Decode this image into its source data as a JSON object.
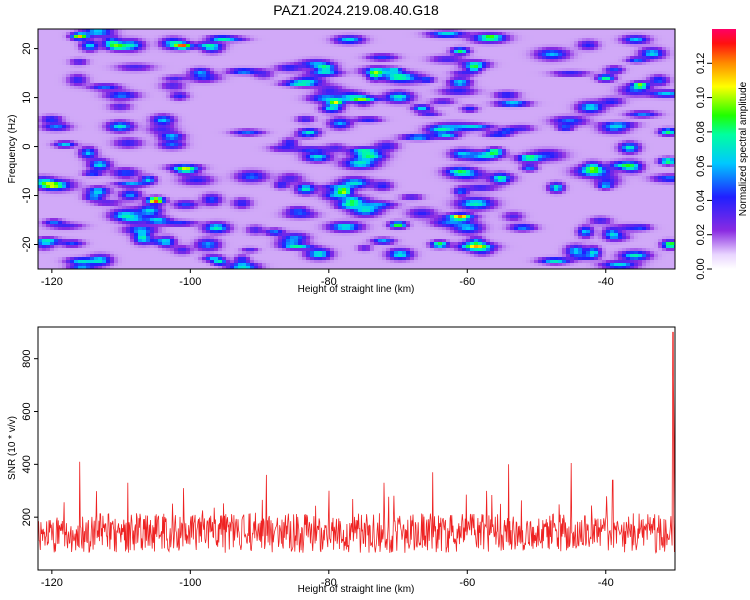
{
  "figure_title": "PAZ1.2024.219.08.40.G18",
  "chart_data": [
    {
      "type": "heatmap",
      "title": "",
      "xlabel": "Height of straight line (km)",
      "ylabel": "Frequency (Hz)",
      "xlim": [
        -122,
        -30
      ],
      "ylim": [
        -25,
        24
      ],
      "xticks": [
        -120,
        -100,
        -80,
        -60,
        -40
      ],
      "yticks": [
        -20,
        -10,
        0,
        10,
        20
      ],
      "colorbar": {
        "label": "Normalized spectral amplitude",
        "range": [
          0,
          0.14
        ],
        "ticks": [
          0,
          0.02,
          0.04,
          0.06,
          0.08,
          0.1,
          0.12
        ],
        "tick_labels": [
          "0.00",
          "0.02",
          "0.04",
          "0.06",
          "0.08",
          "0.10",
          "0.12"
        ],
        "colormap": "rainbow (white-violet-blue-cyan-green-yellow-red-magenta)"
      },
      "notable_peaks": [
        {
          "x": -105,
          "y": -11,
          "value": 0.14
        },
        {
          "x": -116,
          "y": 22.5,
          "value": 0.11
        },
        {
          "x": -101,
          "y": 20.5,
          "value": 0.11
        },
        {
          "x": -70,
          "y": -16,
          "value": 0.09
        },
        {
          "x": -64,
          "y": -20,
          "value": 0.09
        },
        {
          "x": -31,
          "y": 3,
          "value": 0.08
        },
        {
          "x": -31,
          "y": -3,
          "value": 0.09
        },
        {
          "x": -35,
          "y": 12.5,
          "value": 0.09
        },
        {
          "x": -79,
          "y": 9,
          "value": 0.09
        },
        {
          "x": -40,
          "y": 14,
          "value": 0.08
        },
        {
          "x": -61,
          "y": 19.5,
          "value": 0.08
        },
        {
          "x": -56,
          "y": -1,
          "value": 0.08
        }
      ]
    },
    {
      "type": "line",
      "title": "",
      "xlabel": "Height of straight line (km)",
      "ylabel": "SNR (10 * v/v)",
      "xlim": [
        -122,
        -30
      ],
      "ylim": [
        0,
        920
      ],
      "xticks": [
        -120,
        -100,
        -80,
        -60,
        -40
      ],
      "yticks": [
        200,
        400,
        600,
        800
      ],
      "series_color": "#ee2222",
      "approx_series": {
        "typical_range": [
          40,
          250
        ],
        "mean": 140,
        "peaks": [
          {
            "x": -116,
            "y": 410
          },
          {
            "x": -109,
            "y": 330
          },
          {
            "x": -101,
            "y": 310
          },
          {
            "x": -89,
            "y": 360
          },
          {
            "x": -80,
            "y": 300
          },
          {
            "x": -72,
            "y": 330
          },
          {
            "x": -65,
            "y": 370
          },
          {
            "x": -54,
            "y": 400
          },
          {
            "x": -45,
            "y": 405
          },
          {
            "x": -39,
            "y": 340
          },
          {
            "x": -30.3,
            "y": 900
          }
        ]
      }
    }
  ]
}
